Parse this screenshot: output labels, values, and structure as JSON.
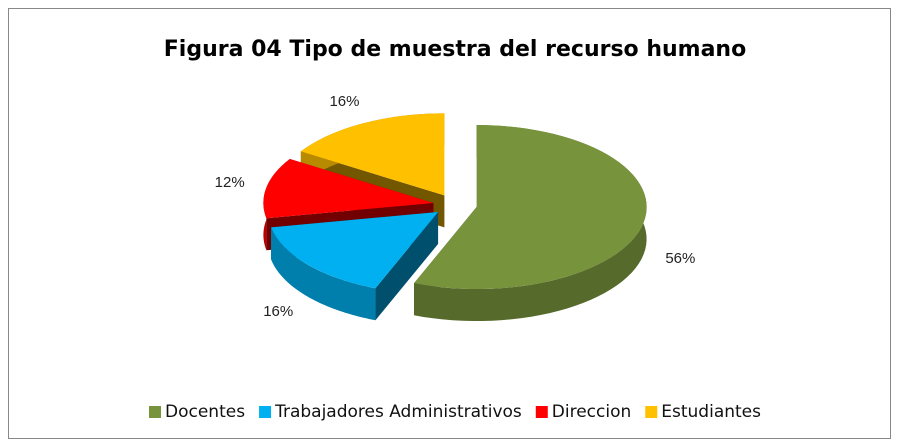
{
  "chart_data": {
    "type": "pie",
    "title": "Figura 04 Tipo de muestra del recurso humano",
    "categories": [
      "Docentes",
      "Trabajadores Administrativos",
      "Direccion",
      "Estudiantes"
    ],
    "values": [
      56,
      16,
      12,
      16
    ],
    "value_labels": [
      "56%",
      "16%",
      "12%",
      "16%"
    ],
    "colors": [
      "#77933c",
      "#00b0f0",
      "#ff0000",
      "#ffc000"
    ],
    "legend": "bottom"
  }
}
